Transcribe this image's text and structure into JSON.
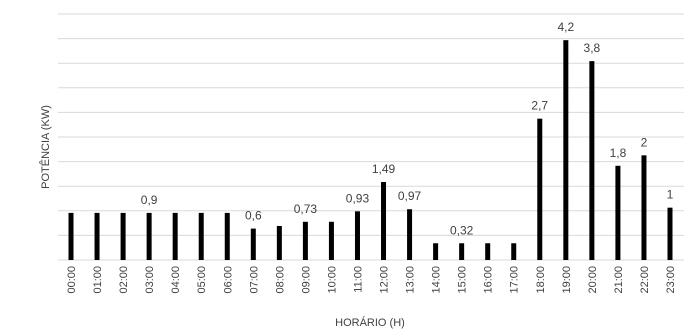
{
  "chart_data": {
    "type": "bar",
    "title": "",
    "xlabel": "HORÁRIO (H)",
    "ylabel": "POTÊNCIA (KW)",
    "ylim": [
      0,
      4.7
    ],
    "grid": true,
    "legend": "none",
    "bar_color": "#000000",
    "grid_color": "#d9d9d9",
    "categories": [
      "00:00",
      "01:00",
      "02:00",
      "03:00",
      "04:00",
      "05:00",
      "06:00",
      "07:00",
      "08:00",
      "09:00",
      "10:00",
      "11:00",
      "12:00",
      "13:00",
      "14:00",
      "15:00",
      "16:00",
      "17:00",
      "18:00",
      "19:00",
      "20:00",
      "21:00",
      "22:00",
      "23:00"
    ],
    "values": [
      0.9,
      0.9,
      0.9,
      0.9,
      0.9,
      0.9,
      0.9,
      0.6,
      0.65,
      0.73,
      0.73,
      0.93,
      1.49,
      0.97,
      0.32,
      0.32,
      0.32,
      0.32,
      2.7,
      4.2,
      3.8,
      1.8,
      2,
      1
    ],
    "data_labels": [
      "",
      "",
      "",
      "0,9",
      "",
      "",
      "",
      "0,6",
      "",
      "0,73",
      "",
      "0,93",
      "1,49",
      "0,97",
      "",
      "0,32",
      "",
      "",
      "2,7",
      "4,2",
      "3,8",
      "1,8",
      "2",
      "1"
    ]
  }
}
